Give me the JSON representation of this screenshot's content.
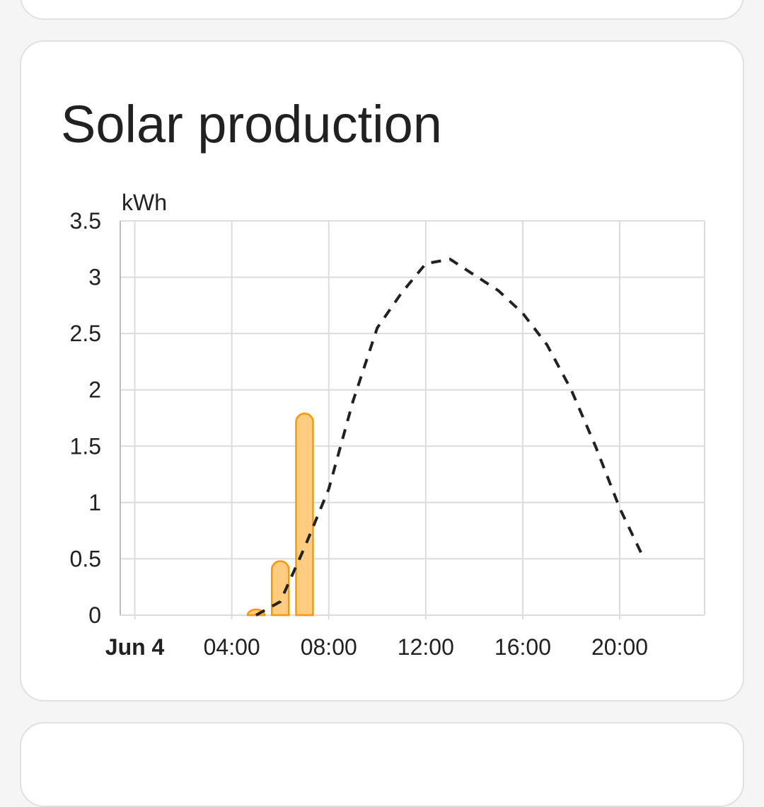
{
  "card": {
    "title": "Solar production"
  },
  "chart_data": {
    "type": "bar",
    "unit": "kWh",
    "ylim": [
      0,
      3.5
    ],
    "y_ticks": [
      "0",
      "0.5",
      "1",
      "1.5",
      "2",
      "2.5",
      "3",
      "3.5"
    ],
    "y_tick_values": [
      0,
      0.5,
      1,
      1.5,
      2,
      2.5,
      3,
      3.5
    ],
    "x_ticks": [
      "Jun 4",
      "04:00",
      "08:00",
      "12:00",
      "16:00",
      "20:00"
    ],
    "x_tick_hours": [
      0,
      4,
      8,
      12,
      16,
      20
    ],
    "xlim_hours": [
      -0.6,
      23.5
    ],
    "grid": true,
    "series": [
      {
        "kind": "bar",
        "color": "#ff9800",
        "fill": "#ffcc80",
        "points": [
          {
            "hour": 5,
            "value": 0.05
          },
          {
            "hour": 6,
            "value": 0.48
          },
          {
            "hour": 7,
            "value": 1.79
          }
        ]
      },
      {
        "kind": "line",
        "style": "dashed",
        "color": "#212121",
        "points": [
          {
            "hour": 5,
            "value": 0.0
          },
          {
            "hour": 6,
            "value": 0.12
          },
          {
            "hour": 7,
            "value": 0.6
          },
          {
            "hour": 8,
            "value": 1.12
          },
          {
            "hour": 9,
            "value": 1.9
          },
          {
            "hour": 10,
            "value": 2.55
          },
          {
            "hour": 11,
            "value": 2.86
          },
          {
            "hour": 12,
            "value": 3.12
          },
          {
            "hour": 13,
            "value": 3.16
          },
          {
            "hour": 14,
            "value": 3.02
          },
          {
            "hour": 15,
            "value": 2.88
          },
          {
            "hour": 16,
            "value": 2.68
          },
          {
            "hour": 17,
            "value": 2.4
          },
          {
            "hour": 18,
            "value": 2.0
          },
          {
            "hour": 19,
            "value": 1.5
          },
          {
            "hour": 20,
            "value": 0.95
          },
          {
            "hour": 21,
            "value": 0.5
          }
        ]
      }
    ]
  }
}
